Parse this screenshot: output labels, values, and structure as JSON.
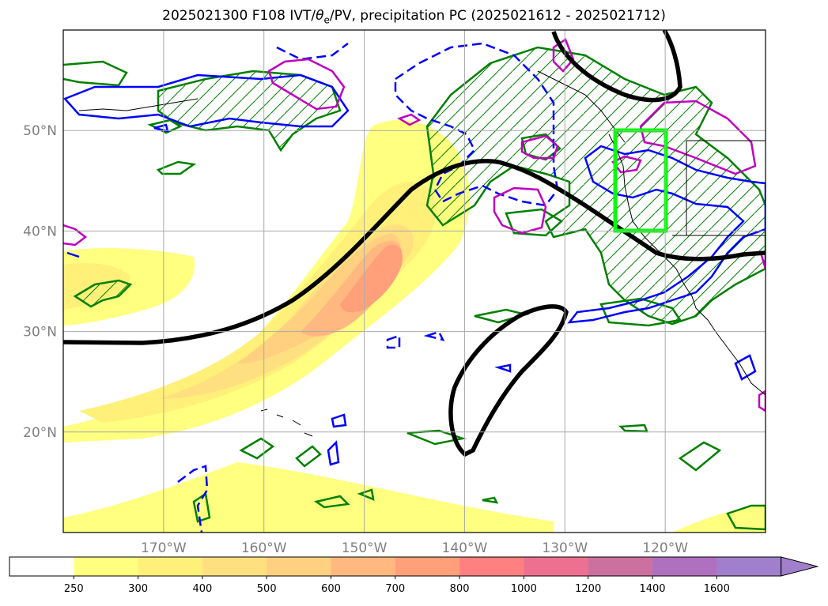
{
  "title": {
    "prefix": "2025021300 F108 IVT/",
    "theta": "θ",
    "sub": "e",
    "suffix": "/PV, precipitation PC (2025021612 - 2025021712)"
  },
  "map": {
    "lon_range": [
      -180,
      -110
    ],
    "lat_range": [
      10,
      60
    ],
    "lon_ticks": [
      {
        "value": -170,
        "label": "170°W"
      },
      {
        "value": -160,
        "label": "160°W"
      },
      {
        "value": -150,
        "label": "150°W"
      },
      {
        "value": -140,
        "label": "140°W"
      },
      {
        "value": -130,
        "label": "130°W"
      },
      {
        "value": -120,
        "label": "120°W"
      }
    ],
    "lat_ticks": [
      {
        "value": 20,
        "label": "20°N"
      },
      {
        "value": 30,
        "label": "30°N"
      },
      {
        "value": 40,
        "label": "40°N"
      },
      {
        "value": 50,
        "label": "50°N"
      }
    ],
    "grid": true,
    "highlight_box": {
      "lon": [
        -125,
        -120
      ],
      "lat": [
        40,
        50
      ],
      "color": "#00ff00"
    },
    "colors": {
      "positive_contour": "#0000ff",
      "pv_contour": "#008000",
      "theta_contour": "#c000c0",
      "main_contour": "#000000",
      "coast": "#000000"
    }
  },
  "colorbar": {
    "levels": [
      "250",
      "300",
      "400",
      "500",
      "600",
      "700",
      "800",
      "1000",
      "1200",
      "1400",
      "1600"
    ],
    "colors": [
      "#ffffff",
      "#ffff80",
      "#fff07a",
      "#ffe080",
      "#ffd080",
      "#ffb880",
      "#ffa07a",
      "#ff8080",
      "#ee7090",
      "#cc70a0",
      "#b070c0",
      "#a080cc"
    ],
    "extend": "max"
  }
}
